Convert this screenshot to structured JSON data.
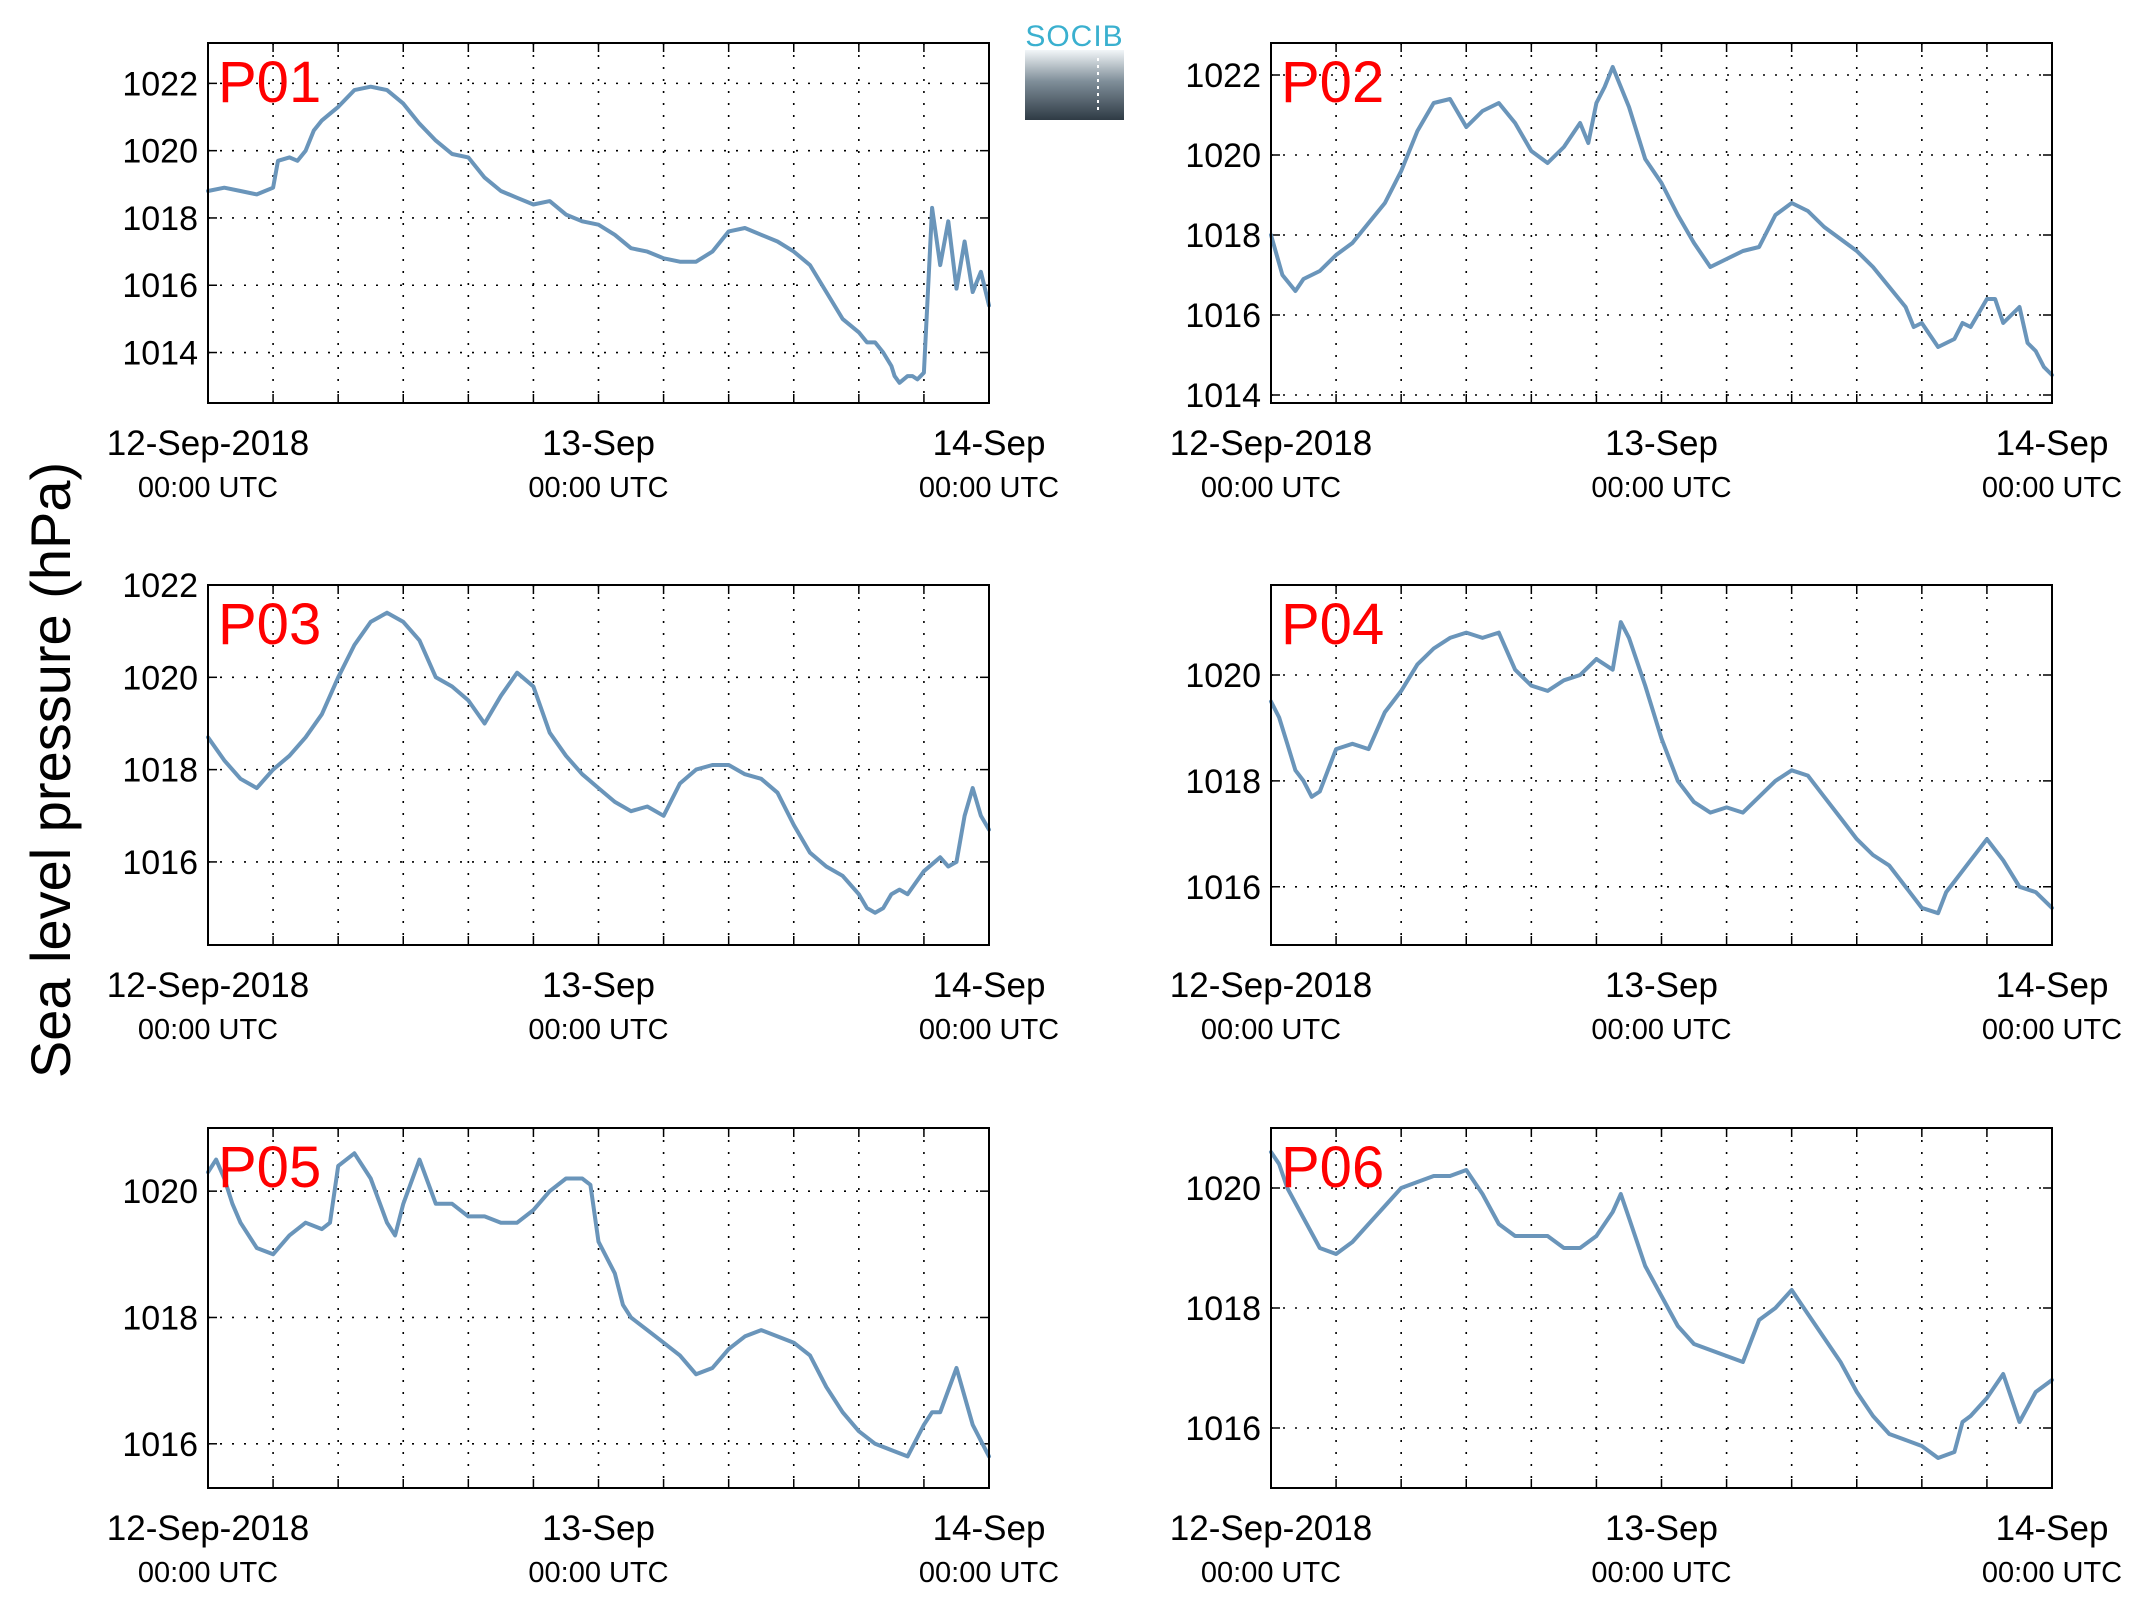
{
  "figure": {
    "ylabel": "Sea level pressure (hPa)",
    "logo_text": "SOCIB",
    "colors": {
      "line": "#6a95ba",
      "panel_label": "#ff0000",
      "logo_top": "#3ab0cf",
      "logo_bottom": "#2f3b45"
    }
  },
  "chart_data": [
    {
      "type": "line",
      "title": "P01",
      "ylim": [
        1012.5,
        1023.2
      ],
      "yticks": [
        1014,
        1016,
        1018,
        1020,
        1022
      ],
      "xlim": [
        0,
        48
      ],
      "xticks": [
        0,
        24,
        48
      ],
      "xticklabels": [
        [
          "12-Sep-2018",
          "00:00 UTC"
        ],
        [
          "13-Sep",
          "00:00 UTC"
        ],
        [
          "14-Sep",
          "00:00 UTC"
        ]
      ],
      "grid": true,
      "series": [
        {
          "x": [
            0,
            1,
            2,
            3,
            4,
            4.3,
            5,
            5.5,
            6,
            6.5,
            7,
            7.5,
            8,
            9,
            10,
            11,
            12,
            13,
            14,
            15,
            16,
            17,
            18,
            19,
            20,
            21,
            22,
            23,
            24,
            25,
            26,
            27,
            28,
            29,
            30,
            31,
            32,
            33,
            34,
            35,
            36,
            37,
            38,
            39,
            40,
            40.5,
            41,
            41.5,
            42,
            42.2,
            42.5,
            43,
            43.3,
            43.6,
            44,
            44.5,
            45,
            45.5,
            46,
            46.5,
            47,
            47.5,
            48
          ],
          "y": [
            1018.8,
            1018.9,
            1018.8,
            1018.7,
            1018.9,
            1019.7,
            1019.8,
            1019.7,
            1020.0,
            1020.6,
            1020.9,
            1021.1,
            1021.3,
            1021.8,
            1021.9,
            1021.8,
            1021.4,
            1020.8,
            1020.3,
            1019.9,
            1019.8,
            1019.2,
            1018.8,
            1018.6,
            1018.4,
            1018.5,
            1018.1,
            1017.9,
            1017.8,
            1017.5,
            1017.1,
            1017.0,
            1016.8,
            1016.7,
            1016.7,
            1017.0,
            1017.6,
            1017.7,
            1017.5,
            1017.3,
            1017.0,
            1016.6,
            1015.8,
            1015.0,
            1014.6,
            1014.3,
            1014.3,
            1014.0,
            1013.6,
            1013.3,
            1013.1,
            1013.3,
            1013.3,
            1013.2,
            1013.4,
            1018.3,
            1016.6,
            1017.9,
            1015.9,
            1017.3,
            1015.8,
            1016.4,
            1015.4
          ]
        }
      ]
    },
    {
      "type": "line",
      "title": "P02",
      "ylim": [
        1013.8,
        1022.8
      ],
      "yticks": [
        1014,
        1016,
        1018,
        1020,
        1022
      ],
      "xlim": [
        0,
        48
      ],
      "xticks": [
        0,
        24,
        48
      ],
      "xticklabels": [
        [
          "12-Sep-2018",
          "00:00 UTC"
        ],
        [
          "13-Sep",
          "00:00 UTC"
        ],
        [
          "14-Sep",
          "00:00 UTC"
        ]
      ],
      "grid": true,
      "series": [
        {
          "x": [
            0,
            0.7,
            1.5,
            2,
            3,
            4,
            5,
            6,
            7,
            8,
            9,
            10,
            11,
            12,
            13,
            14,
            15,
            16,
            17,
            18,
            19,
            19.5,
            20,
            20.5,
            21,
            22,
            23,
            24,
            25,
            26,
            27,
            28,
            29,
            30,
            31,
            32,
            33,
            34,
            35,
            36,
            37,
            38,
            39,
            39.5,
            40,
            41,
            42,
            42.5,
            43,
            44,
            44.5,
            45,
            46,
            46.5,
            47,
            47.5,
            48
          ],
          "y": [
            1018.0,
            1017.0,
            1016.6,
            1016.9,
            1017.1,
            1017.5,
            1017.8,
            1018.3,
            1018.8,
            1019.6,
            1020.6,
            1021.3,
            1021.4,
            1020.7,
            1021.1,
            1021.3,
            1020.8,
            1020.1,
            1019.8,
            1020.2,
            1020.8,
            1020.3,
            1021.3,
            1021.7,
            1022.2,
            1021.2,
            1019.9,
            1019.3,
            1018.5,
            1017.8,
            1017.2,
            1017.4,
            1017.6,
            1017.7,
            1018.5,
            1018.8,
            1018.6,
            1018.2,
            1017.9,
            1017.6,
            1017.2,
            1016.7,
            1016.2,
            1015.7,
            1015.8,
            1015.2,
            1015.4,
            1015.8,
            1015.7,
            1016.4,
            1016.4,
            1015.8,
            1016.2,
            1015.3,
            1015.1,
            1014.7,
            1014.5
          ]
        }
      ]
    },
    {
      "type": "line",
      "title": "P03",
      "ylim": [
        1014.2,
        1022.0
      ],
      "yticks": [
        1016,
        1018,
        1020,
        1022
      ],
      "xlim": [
        0,
        48
      ],
      "xticks": [
        0,
        24,
        48
      ],
      "xticklabels": [
        [
          "12-Sep-2018",
          "00:00 UTC"
        ],
        [
          "13-Sep",
          "00:00 UTC"
        ],
        [
          "14-Sep",
          "00:00 UTC"
        ]
      ],
      "grid": true,
      "series": [
        {
          "x": [
            0,
            1,
            2,
            3,
            4,
            5,
            6,
            7,
            8,
            9,
            10,
            11,
            12,
            13,
            14,
            15,
            16,
            17,
            18,
            19,
            20,
            21,
            22,
            23,
            24,
            25,
            26,
            27,
            28,
            29,
            30,
            31,
            32,
            33,
            34,
            35,
            36,
            37,
            38,
            39,
            40,
            40.5,
            41,
            41.5,
            42,
            42.5,
            43,
            44,
            45,
            45.5,
            46,
            46.5,
            47,
            47.5,
            48
          ],
          "y": [
            1018.7,
            1018.2,
            1017.8,
            1017.6,
            1018.0,
            1018.3,
            1018.7,
            1019.2,
            1020.0,
            1020.7,
            1021.2,
            1021.4,
            1021.2,
            1020.8,
            1020.0,
            1019.8,
            1019.5,
            1019.0,
            1019.6,
            1020.1,
            1019.8,
            1018.8,
            1018.3,
            1017.9,
            1017.6,
            1017.3,
            1017.1,
            1017.2,
            1017.0,
            1017.7,
            1018.0,
            1018.1,
            1018.1,
            1017.9,
            1017.8,
            1017.5,
            1016.8,
            1016.2,
            1015.9,
            1015.7,
            1015.3,
            1015.0,
            1014.9,
            1015.0,
            1015.3,
            1015.4,
            1015.3,
            1015.8,
            1016.1,
            1015.9,
            1016.0,
            1017.0,
            1017.6,
            1017.0,
            1016.7
          ]
        }
      ]
    },
    {
      "type": "line",
      "title": "P04",
      "ylim": [
        1014.9,
        1021.7
      ],
      "yticks": [
        1016,
        1018,
        1020
      ],
      "xlim": [
        0,
        48
      ],
      "xticks": [
        0,
        24,
        48
      ],
      "xticklabels": [
        [
          "12-Sep-2018",
          "00:00 UTC"
        ],
        [
          "13-Sep",
          "00:00 UTC"
        ],
        [
          "14-Sep",
          "00:00 UTC"
        ]
      ],
      "grid": true,
      "series": [
        {
          "x": [
            0,
            0.5,
            1,
            1.5,
            2,
            2.5,
            3,
            3.5,
            4,
            5,
            6,
            7,
            8,
            9,
            10,
            11,
            12,
            13,
            14,
            15,
            16,
            17,
            18,
            19,
            20,
            21,
            21.5,
            22,
            23,
            24,
            25,
            26,
            27,
            28,
            29,
            30,
            31,
            32,
            33,
            34,
            35,
            36,
            37,
            38,
            39,
            40,
            41,
            41.5,
            42,
            43,
            43.5,
            44,
            45,
            46,
            47,
            48
          ],
          "y": [
            1019.5,
            1019.2,
            1018.7,
            1018.2,
            1018.0,
            1017.7,
            1017.8,
            1018.2,
            1018.6,
            1018.7,
            1018.6,
            1019.3,
            1019.7,
            1020.2,
            1020.5,
            1020.7,
            1020.8,
            1020.7,
            1020.8,
            1020.1,
            1019.8,
            1019.7,
            1019.9,
            1020.0,
            1020.3,
            1020.1,
            1021.0,
            1020.7,
            1019.8,
            1018.8,
            1018.0,
            1017.6,
            1017.4,
            1017.5,
            1017.4,
            1017.7,
            1018.0,
            1018.2,
            1018.1,
            1017.7,
            1017.3,
            1016.9,
            1016.6,
            1016.4,
            1016.0,
            1015.6,
            1015.5,
            1015.9,
            1016.1,
            1016.5,
            1016.7,
            1016.9,
            1016.5,
            1016.0,
            1015.9,
            1015.6
          ]
        }
      ]
    },
    {
      "type": "line",
      "title": "P05",
      "ylim": [
        1015.3,
        1021.0
      ],
      "yticks": [
        1016,
        1018,
        1020
      ],
      "xlim": [
        0,
        48
      ],
      "xticks": [
        0,
        24,
        48
      ],
      "xticklabels": [
        [
          "12-Sep-2018",
          "00:00 UTC"
        ],
        [
          "13-Sep",
          "00:00 UTC"
        ],
        [
          "14-Sep",
          "00:00 UTC"
        ]
      ],
      "grid": true,
      "series": [
        {
          "x": [
            0,
            0.5,
            1,
            1.5,
            2,
            3,
            4,
            5,
            6,
            7,
            7.5,
            8,
            9,
            10,
            11,
            11.5,
            12,
            13,
            14,
            15,
            16,
            17,
            18,
            19,
            20,
            21,
            22,
            23,
            23.5,
            24,
            25,
            25.5,
            26,
            27,
            28,
            29,
            30,
            31,
            32,
            33,
            34,
            35,
            36,
            37,
            38,
            39,
            40,
            41,
            42,
            43,
            44,
            44.5,
            45,
            46,
            47,
            48
          ],
          "y": [
            1020.3,
            1020.5,
            1020.2,
            1019.8,
            1019.5,
            1019.1,
            1019.0,
            1019.3,
            1019.5,
            1019.4,
            1019.5,
            1020.4,
            1020.6,
            1020.2,
            1019.5,
            1019.3,
            1019.8,
            1020.5,
            1019.8,
            1019.8,
            1019.6,
            1019.6,
            1019.5,
            1019.5,
            1019.7,
            1020.0,
            1020.2,
            1020.2,
            1020.1,
            1019.2,
            1018.7,
            1018.2,
            1018.0,
            1017.8,
            1017.6,
            1017.4,
            1017.1,
            1017.2,
            1017.5,
            1017.7,
            1017.8,
            1017.7,
            1017.6,
            1017.4,
            1016.9,
            1016.5,
            1016.2,
            1016.0,
            1015.9,
            1015.8,
            1016.3,
            1016.5,
            1016.5,
            1017.2,
            1016.3,
            1015.8
          ]
        }
      ]
    },
    {
      "type": "line",
      "title": "P06",
      "ylim": [
        1015.0,
        1021.0
      ],
      "yticks": [
        1016,
        1018,
        1020
      ],
      "xlim": [
        0,
        48
      ],
      "xticks": [
        0,
        24,
        48
      ],
      "xticklabels": [
        [
          "12-Sep-2018",
          "00:00 UTC"
        ],
        [
          "13-Sep",
          "00:00 UTC"
        ],
        [
          "14-Sep",
          "00:00 UTC"
        ]
      ],
      "grid": true,
      "series": [
        {
          "x": [
            0,
            0.5,
            1,
            2,
            3,
            4,
            5,
            6,
            7,
            8,
            9,
            10,
            11,
            12,
            13,
            14,
            15,
            16,
            17,
            18,
            19,
            20,
            21,
            21.5,
            22,
            23,
            24,
            25,
            26,
            27,
            28,
            29,
            30,
            31,
            32,
            33,
            34,
            35,
            36,
            37,
            38,
            39,
            40,
            41,
            42,
            42.5,
            43,
            44,
            45,
            46,
            47,
            48
          ],
          "y": [
            1020.6,
            1020.4,
            1020.0,
            1019.5,
            1019.0,
            1018.9,
            1019.1,
            1019.4,
            1019.7,
            1020.0,
            1020.1,
            1020.2,
            1020.2,
            1020.3,
            1019.9,
            1019.4,
            1019.2,
            1019.2,
            1019.2,
            1019.0,
            1019.0,
            1019.2,
            1019.6,
            1019.9,
            1019.5,
            1018.7,
            1018.2,
            1017.7,
            1017.4,
            1017.3,
            1017.2,
            1017.1,
            1017.8,
            1018.0,
            1018.3,
            1017.9,
            1017.5,
            1017.1,
            1016.6,
            1016.2,
            1015.9,
            1015.8,
            1015.7,
            1015.5,
            1015.6,
            1016.1,
            1016.2,
            1016.5,
            1016.9,
            1016.1,
            1016.6,
            1016.8
          ]
        }
      ]
    }
  ]
}
